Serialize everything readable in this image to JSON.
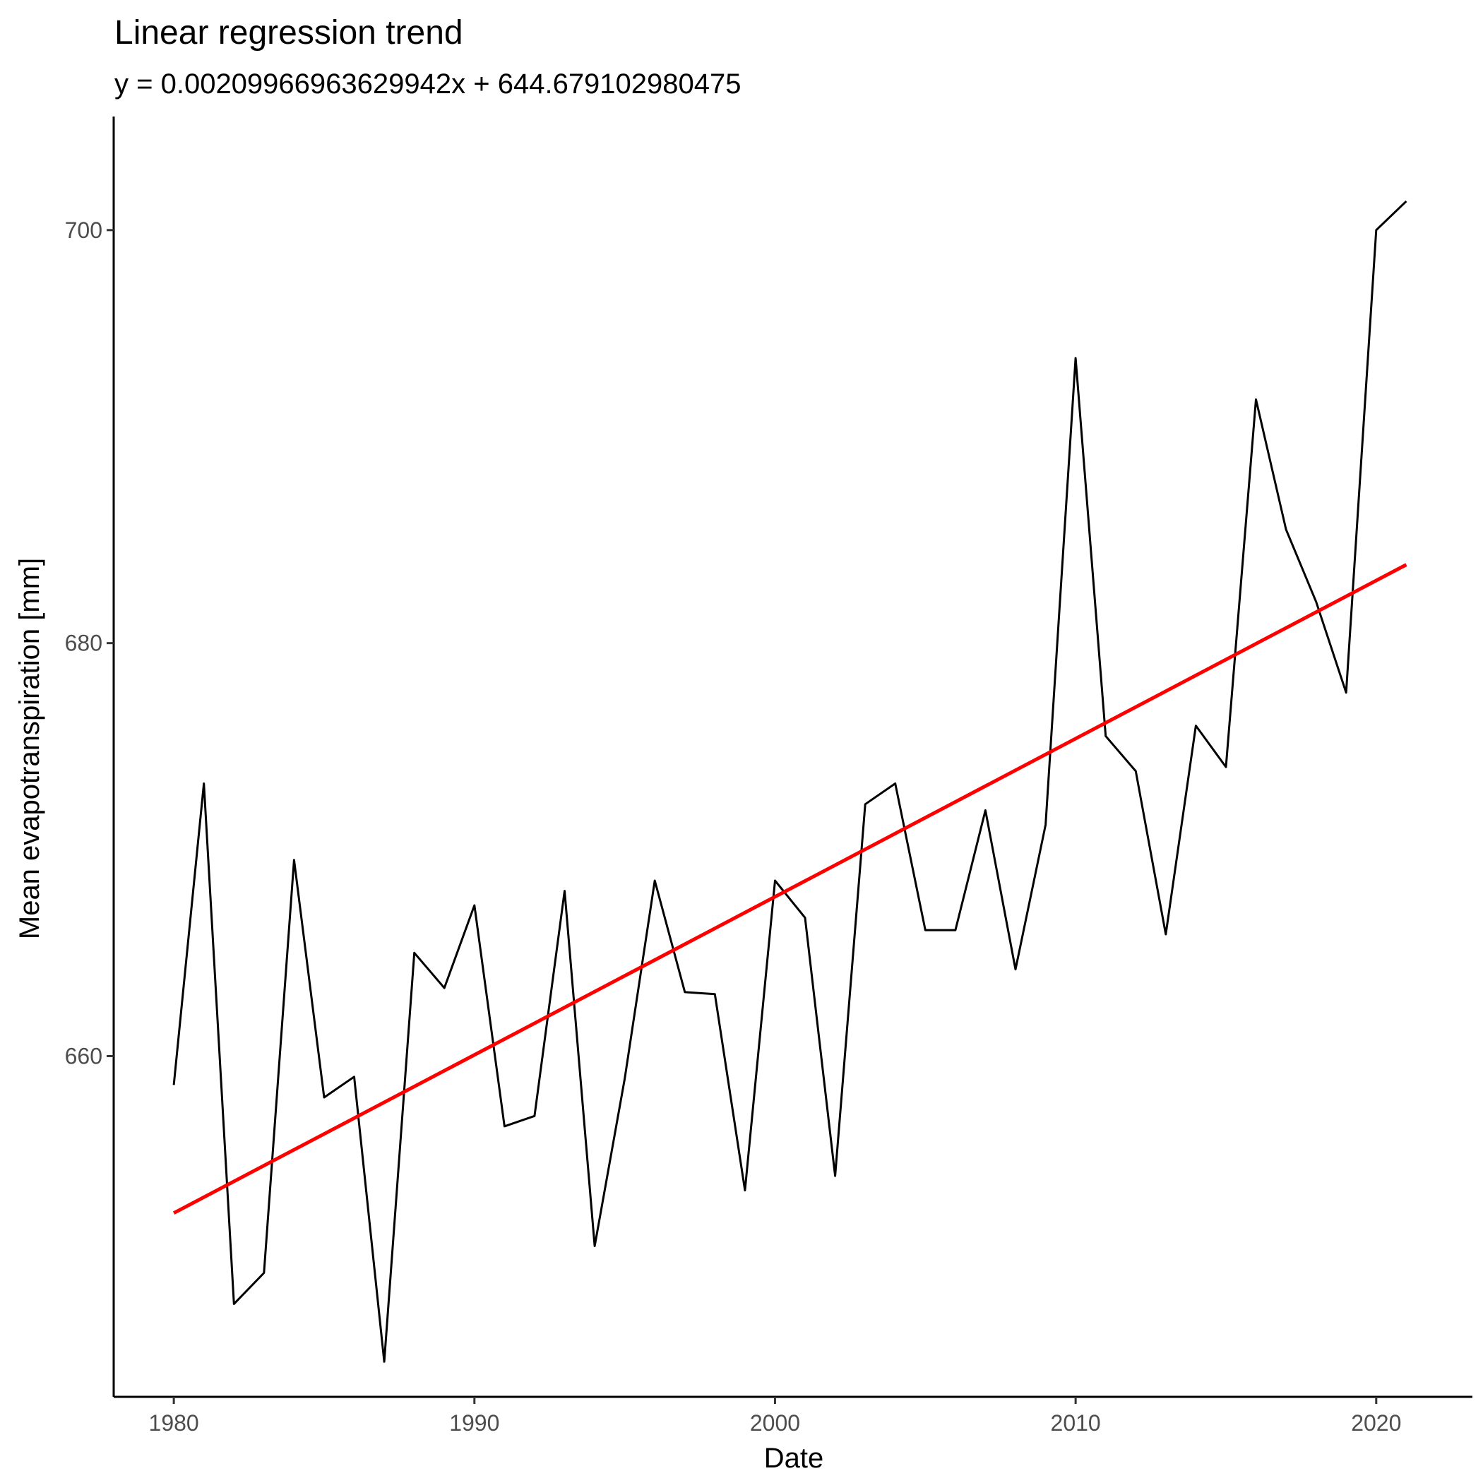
{
  "chart_data": {
    "type": "line",
    "title": "Linear regression trend",
    "subtitle": "y = 0.00209966963629942x + 644.679102980475",
    "xlabel": "Date",
    "ylabel": "Mean evapotranspiration [mm]",
    "x_ticks": [
      "1980",
      "1990",
      "2000",
      "2010",
      "2020"
    ],
    "y_ticks": [
      "660",
      "680",
      "700"
    ],
    "xlim": [
      1978,
      2023.2
    ],
    "ylim": [
      643.5,
      705.5
    ],
    "grid": false,
    "legend": "none",
    "series": [
      {
        "color": "#000000",
        "x": [
          1980,
          1981,
          1982,
          1983,
          1984,
          1985,
          1986,
          1987,
          1988,
          1989,
          1990,
          1991,
          1992,
          1993,
          1994,
          1995,
          1996,
          1997,
          1998,
          1999,
          2000,
          2001,
          2002,
          2003,
          2004,
          2005,
          2006,
          2007,
          2008,
          2009,
          2010,
          2011,
          2012,
          2013,
          2014,
          2015,
          2016,
          2017,
          2018,
          2019,
          2020,
          2021
        ],
        "values": [
          658.6,
          673.2,
          648.0,
          649.5,
          669.5,
          658.0,
          659.0,
          645.2,
          665.0,
          663.3,
          667.3,
          656.6,
          657.1,
          668.0,
          650.8,
          658.9,
          668.5,
          663.1,
          663.0,
          653.5,
          668.5,
          666.7,
          654.2,
          672.2,
          673.2,
          666.1,
          666.1,
          671.9,
          664.2,
          671.2,
          693.8,
          675.5,
          673.8,
          665.9,
          676.0,
          674.0,
          691.8,
          685.5,
          682.0,
          677.6,
          700.0,
          701.4
        ]
      },
      {
        "color": "#ff0000",
        "trend": true,
        "x": [
          1980,
          2021
        ],
        "values": [
          652.4,
          683.8
        ]
      }
    ]
  }
}
